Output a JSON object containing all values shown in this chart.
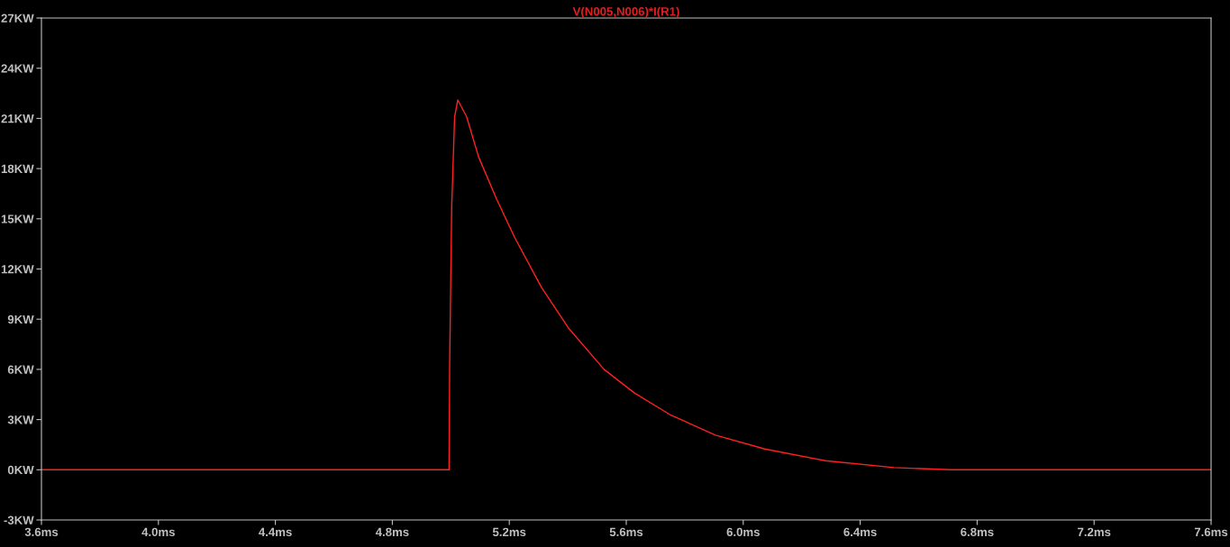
{
  "chart_data": {
    "type": "line",
    "title": "V(N005,N006)*I(R1)",
    "x": [
      3.6,
      4.994,
      4.996,
      5.003,
      5.013,
      5.024,
      5.054,
      5.095,
      5.156,
      5.218,
      5.31,
      5.401,
      5.524,
      5.627,
      5.749,
      5.905,
      6.074,
      6.281,
      6.516,
      6.71,
      7.6
    ],
    "series": [
      {
        "color": "#ff2020",
        "values": [
          0,
          0,
          6.2,
          15.7,
          21.1,
          22.1,
          21.1,
          18.7,
          16.2,
          13.9,
          10.9,
          8.5,
          6.0,
          4.6,
          3.3,
          2.07,
          1.24,
          0.54,
          0.13,
          0,
          0
        ]
      }
    ],
    "xlim": [
      3.6,
      7.6
    ],
    "ylim": [
      -3,
      27
    ],
    "xticks": [
      {
        "value": 3.6,
        "label": "3.6ms"
      },
      {
        "value": 4.0,
        "label": "4.0ms"
      },
      {
        "value": 4.4,
        "label": "4.4ms"
      },
      {
        "value": 4.8,
        "label": "4.8ms"
      },
      {
        "value": 5.2,
        "label": "5.2ms"
      },
      {
        "value": 5.6,
        "label": "5.6ms"
      },
      {
        "value": 6.0,
        "label": "6.0ms"
      },
      {
        "value": 6.4,
        "label": "6.4ms"
      },
      {
        "value": 6.8,
        "label": "6.8ms"
      },
      {
        "value": 7.2,
        "label": "7.2ms"
      },
      {
        "value": 7.6,
        "label": "7.6ms"
      }
    ],
    "yticks": [
      {
        "value": -3,
        "label": "-3KW"
      },
      {
        "value": 0,
        "label": "0KW"
      },
      {
        "value": 3,
        "label": "3KW"
      },
      {
        "value": 6,
        "label": "6KW"
      },
      {
        "value": 9,
        "label": "9KW"
      },
      {
        "value": 12,
        "label": "12KW"
      },
      {
        "value": 15,
        "label": "15KW"
      },
      {
        "value": 18,
        "label": "18KW"
      },
      {
        "value": 21,
        "label": "21KW"
      },
      {
        "value": 24,
        "label": "24KW"
      },
      {
        "value": 27,
        "label": "27KW"
      }
    ],
    "grid": false,
    "legend": false
  }
}
